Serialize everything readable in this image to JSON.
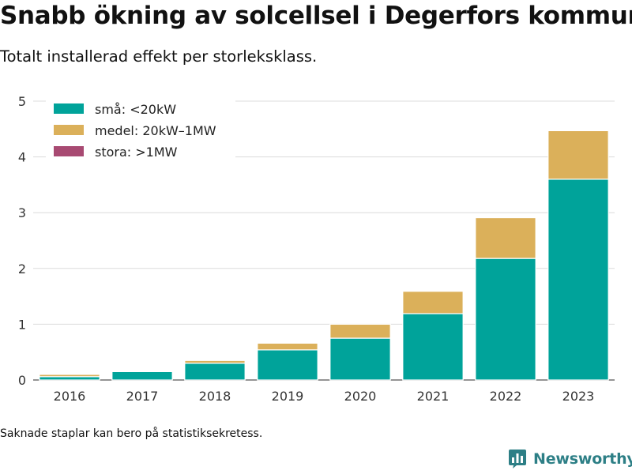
{
  "title": "Snabb ökning av solcellsel i Degerfors kommun",
  "subtitle": "Totalt installerad effekt per storleksklass.",
  "footnote": "Saknade staplar kan bero på statistiksekretess.",
  "brand": {
    "name": "Newsworthy",
    "icon": "bar-chart-logo-icon",
    "color": "#2d7f86"
  },
  "chart_data": {
    "type": "bar",
    "stacked": true,
    "categories": [
      "2016",
      "2017",
      "2018",
      "2019",
      "2020",
      "2021",
      "2022",
      "2023"
    ],
    "series": [
      {
        "name": "små: <20kW",
        "color": "#00a39a",
        "values": [
          0.06,
          0.15,
          0.3,
          0.54,
          0.75,
          1.19,
          2.18,
          3.6
        ]
      },
      {
        "name": "medel: 20kW–1MW",
        "color": "#dbb05a",
        "values": [
          0.04,
          0,
          0.05,
          0.12,
          0.25,
          0.4,
          0.73,
          0.87
        ]
      },
      {
        "name": "stora: >1MW",
        "color": "#a84a72",
        "values": [
          0,
          0,
          0,
          0,
          0,
          0,
          0,
          0
        ]
      }
    ],
    "ylim": [
      0,
      5
    ],
    "yticks": [
      0,
      1,
      2,
      3,
      4,
      5
    ],
    "xlabel": "",
    "ylabel": "",
    "grid": true,
    "legend": "top-left"
  }
}
